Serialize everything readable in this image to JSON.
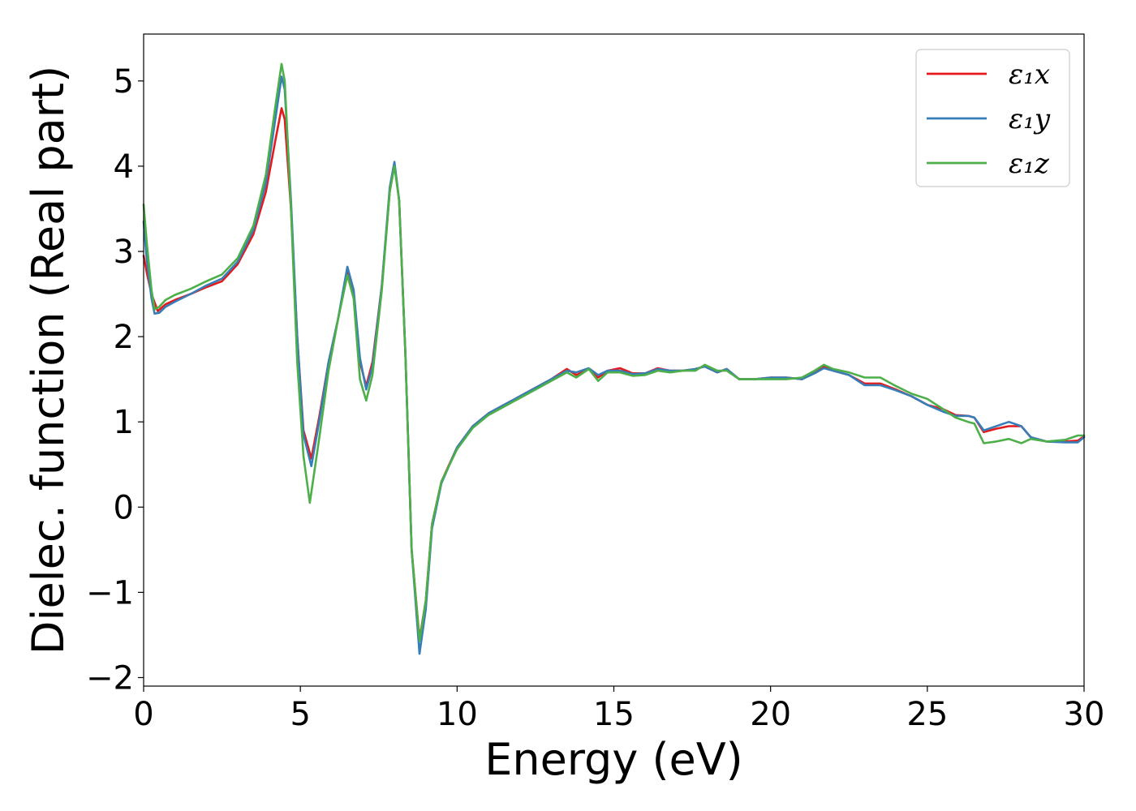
{
  "chart_data": {
    "type": "line",
    "xlabel": "Energy (eV)",
    "ylabel": "Dielec. function (Real part)",
    "xlim": [
      0,
      30
    ],
    "ylim": [
      -2.1,
      5.55
    ],
    "xticks": [
      0,
      5,
      10,
      15,
      20,
      25,
      30
    ],
    "yticks": [
      -2,
      -1,
      0,
      1,
      2,
      3,
      4,
      5
    ],
    "xtick_labels": [
      "0",
      "5",
      "10",
      "15",
      "20",
      "25",
      "30"
    ],
    "ytick_labels": [
      "−2",
      "−1",
      "0",
      "1",
      "2",
      "3",
      "4",
      "5"
    ],
    "grid": false,
    "legend_position": "top-right",
    "series": [
      {
        "name": "ε₁x",
        "color": "#e41a1c",
        "points": [
          [
            0,
            2.95
          ],
          [
            0.1,
            2.75
          ],
          [
            0.25,
            2.5
          ],
          [
            0.45,
            2.3
          ],
          [
            0.7,
            2.38
          ],
          [
            1,
            2.43
          ],
          [
            1.5,
            2.5
          ],
          [
            2,
            2.58
          ],
          [
            2.5,
            2.65
          ],
          [
            3,
            2.85
          ],
          [
            3.5,
            3.2
          ],
          [
            3.9,
            3.7
          ],
          [
            4.2,
            4.3
          ],
          [
            4.4,
            4.68
          ],
          [
            4.5,
            4.55
          ],
          [
            4.7,
            3.5
          ],
          [
            4.9,
            2.0
          ],
          [
            5.1,
            0.9
          ],
          [
            5.35,
            0.57
          ],
          [
            5.6,
            1.05
          ],
          [
            5.9,
            1.7
          ],
          [
            6.2,
            2.2
          ],
          [
            6.5,
            2.78
          ],
          [
            6.7,
            2.5
          ],
          [
            6.9,
            1.7
          ],
          [
            7.1,
            1.42
          ],
          [
            7.3,
            1.7
          ],
          [
            7.6,
            2.6
          ],
          [
            7.85,
            3.7
          ],
          [
            8.0,
            4.02
          ],
          [
            8.15,
            3.6
          ],
          [
            8.35,
            1.8
          ],
          [
            8.55,
            -0.5
          ],
          [
            8.8,
            -1.55
          ],
          [
            9.0,
            -1.1
          ],
          [
            9.2,
            -0.2
          ],
          [
            9.5,
            0.3
          ],
          [
            10,
            0.7
          ],
          [
            10.5,
            0.95
          ],
          [
            11,
            1.1
          ],
          [
            11.5,
            1.2
          ],
          [
            12,
            1.3
          ],
          [
            12.5,
            1.4
          ],
          [
            13,
            1.5
          ],
          [
            13.5,
            1.62
          ],
          [
            13.8,
            1.55
          ],
          [
            14.2,
            1.62
          ],
          [
            14.5,
            1.52
          ],
          [
            14.8,
            1.6
          ],
          [
            15.2,
            1.63
          ],
          [
            15.6,
            1.57
          ],
          [
            16,
            1.57
          ],
          [
            16.4,
            1.63
          ],
          [
            16.8,
            1.6
          ],
          [
            17.2,
            1.6
          ],
          [
            17.6,
            1.62
          ],
          [
            17.9,
            1.65
          ],
          [
            18.3,
            1.58
          ],
          [
            18.6,
            1.62
          ],
          [
            19,
            1.5
          ],
          [
            19.5,
            1.5
          ],
          [
            20,
            1.52
          ],
          [
            20.5,
            1.52
          ],
          [
            21,
            1.5
          ],
          [
            21.4,
            1.58
          ],
          [
            21.7,
            1.65
          ],
          [
            22,
            1.6
          ],
          [
            22.5,
            1.55
          ],
          [
            23,
            1.45
          ],
          [
            23.5,
            1.45
          ],
          [
            24,
            1.38
          ],
          [
            24.5,
            1.3
          ],
          [
            25,
            1.2
          ],
          [
            25.5,
            1.15
          ],
          [
            25.9,
            1.08
          ],
          [
            26.3,
            1.07
          ],
          [
            26.5,
            1.05
          ],
          [
            26.8,
            0.88
          ],
          [
            27.2,
            0.92
          ],
          [
            27.6,
            0.95
          ],
          [
            28,
            0.95
          ],
          [
            28.3,
            0.82
          ],
          [
            28.8,
            0.77
          ],
          [
            29.4,
            0.77
          ],
          [
            29.8,
            0.78
          ],
          [
            30,
            0.83
          ]
        ]
      },
      {
        "name": "ε₁y",
        "color": "#377eb8",
        "points": [
          [
            0,
            3.35
          ],
          [
            0.1,
            2.9
          ],
          [
            0.25,
            2.45
          ],
          [
            0.35,
            2.27
          ],
          [
            0.5,
            2.28
          ],
          [
            0.7,
            2.35
          ],
          [
            1,
            2.41
          ],
          [
            1.5,
            2.5
          ],
          [
            2,
            2.6
          ],
          [
            2.5,
            2.68
          ],
          [
            3,
            2.88
          ],
          [
            3.5,
            3.25
          ],
          [
            3.9,
            3.8
          ],
          [
            4.2,
            4.55
          ],
          [
            4.4,
            5.05
          ],
          [
            4.5,
            4.9
          ],
          [
            4.7,
            3.6
          ],
          [
            4.9,
            2.0
          ],
          [
            5.1,
            0.85
          ],
          [
            5.35,
            0.48
          ],
          [
            5.6,
            1.0
          ],
          [
            5.9,
            1.7
          ],
          [
            6.2,
            2.2
          ],
          [
            6.5,
            2.82
          ],
          [
            6.7,
            2.55
          ],
          [
            6.9,
            1.75
          ],
          [
            7.1,
            1.38
          ],
          [
            7.3,
            1.65
          ],
          [
            7.6,
            2.6
          ],
          [
            7.85,
            3.75
          ],
          [
            8.0,
            4.05
          ],
          [
            8.15,
            3.6
          ],
          [
            8.35,
            1.8
          ],
          [
            8.55,
            -0.5
          ],
          [
            8.8,
            -1.72
          ],
          [
            9.0,
            -1.2
          ],
          [
            9.2,
            -0.25
          ],
          [
            9.5,
            0.28
          ],
          [
            10,
            0.7
          ],
          [
            10.5,
            0.95
          ],
          [
            11,
            1.1
          ],
          [
            11.5,
            1.2
          ],
          [
            12,
            1.3
          ],
          [
            12.5,
            1.4
          ],
          [
            13,
            1.5
          ],
          [
            13.5,
            1.6
          ],
          [
            13.8,
            1.58
          ],
          [
            14.2,
            1.63
          ],
          [
            14.5,
            1.55
          ],
          [
            14.8,
            1.6
          ],
          [
            15.2,
            1.6
          ],
          [
            15.6,
            1.56
          ],
          [
            16,
            1.57
          ],
          [
            16.4,
            1.62
          ],
          [
            16.8,
            1.6
          ],
          [
            17.2,
            1.6
          ],
          [
            17.6,
            1.62
          ],
          [
            17.9,
            1.65
          ],
          [
            18.3,
            1.58
          ],
          [
            18.6,
            1.62
          ],
          [
            19,
            1.5
          ],
          [
            19.5,
            1.5
          ],
          [
            20,
            1.52
          ],
          [
            20.5,
            1.52
          ],
          [
            21,
            1.5
          ],
          [
            21.4,
            1.57
          ],
          [
            21.7,
            1.63
          ],
          [
            22,
            1.6
          ],
          [
            22.5,
            1.55
          ],
          [
            23,
            1.43
          ],
          [
            23.5,
            1.43
          ],
          [
            24,
            1.37
          ],
          [
            24.5,
            1.3
          ],
          [
            25,
            1.2
          ],
          [
            25.5,
            1.12
          ],
          [
            25.9,
            1.07
          ],
          [
            26.3,
            1.07
          ],
          [
            26.5,
            1.05
          ],
          [
            26.8,
            0.9
          ],
          [
            27.2,
            0.95
          ],
          [
            27.6,
            1.0
          ],
          [
            28,
            0.95
          ],
          [
            28.3,
            0.82
          ],
          [
            28.8,
            0.77
          ],
          [
            29.4,
            0.76
          ],
          [
            29.8,
            0.76
          ],
          [
            30,
            0.82
          ]
        ]
      },
      {
        "name": "ε₁z",
        "color": "#4daf4a",
        "points": [
          [
            0,
            3.55
          ],
          [
            0.1,
            3.1
          ],
          [
            0.25,
            2.55
          ],
          [
            0.35,
            2.32
          ],
          [
            0.5,
            2.35
          ],
          [
            0.7,
            2.43
          ],
          [
            1,
            2.49
          ],
          [
            1.5,
            2.56
          ],
          [
            2,
            2.65
          ],
          [
            2.5,
            2.73
          ],
          [
            3,
            2.92
          ],
          [
            3.5,
            3.3
          ],
          [
            3.9,
            3.9
          ],
          [
            4.2,
            4.7
          ],
          [
            4.4,
            5.2
          ],
          [
            4.5,
            5.0
          ],
          [
            4.7,
            3.5
          ],
          [
            4.9,
            1.7
          ],
          [
            5.1,
            0.6
          ],
          [
            5.3,
            0.05
          ],
          [
            5.6,
            0.8
          ],
          [
            5.9,
            1.6
          ],
          [
            6.2,
            2.2
          ],
          [
            6.5,
            2.72
          ],
          [
            6.7,
            2.45
          ],
          [
            6.9,
            1.5
          ],
          [
            7.1,
            1.25
          ],
          [
            7.3,
            1.55
          ],
          [
            7.6,
            2.55
          ],
          [
            7.85,
            3.7
          ],
          [
            8.0,
            4.0
          ],
          [
            8.15,
            3.6
          ],
          [
            8.35,
            1.8
          ],
          [
            8.55,
            -0.5
          ],
          [
            8.8,
            -1.57
          ],
          [
            9.0,
            -1.1
          ],
          [
            9.2,
            -0.2
          ],
          [
            9.5,
            0.3
          ],
          [
            10,
            0.68
          ],
          [
            10.5,
            0.93
          ],
          [
            11,
            1.08
          ],
          [
            11.5,
            1.18
          ],
          [
            12,
            1.28
          ],
          [
            12.5,
            1.38
          ],
          [
            13,
            1.48
          ],
          [
            13.5,
            1.58
          ],
          [
            13.8,
            1.52
          ],
          [
            14.2,
            1.62
          ],
          [
            14.5,
            1.48
          ],
          [
            14.8,
            1.58
          ],
          [
            15.2,
            1.58
          ],
          [
            15.6,
            1.54
          ],
          [
            16,
            1.55
          ],
          [
            16.4,
            1.6
          ],
          [
            16.8,
            1.58
          ],
          [
            17.2,
            1.6
          ],
          [
            17.6,
            1.6
          ],
          [
            17.9,
            1.67
          ],
          [
            18.3,
            1.6
          ],
          [
            18.6,
            1.6
          ],
          [
            19,
            1.5
          ],
          [
            19.5,
            1.5
          ],
          [
            20,
            1.5
          ],
          [
            20.5,
            1.5
          ],
          [
            21,
            1.52
          ],
          [
            21.4,
            1.6
          ],
          [
            21.7,
            1.67
          ],
          [
            22,
            1.62
          ],
          [
            22.5,
            1.58
          ],
          [
            23,
            1.52
          ],
          [
            23.5,
            1.52
          ],
          [
            24,
            1.42
          ],
          [
            24.5,
            1.33
          ],
          [
            25,
            1.27
          ],
          [
            25.5,
            1.15
          ],
          [
            25.9,
            1.05
          ],
          [
            26.3,
            1.0
          ],
          [
            26.5,
            0.98
          ],
          [
            26.8,
            0.75
          ],
          [
            27.2,
            0.77
          ],
          [
            27.6,
            0.8
          ],
          [
            28,
            0.75
          ],
          [
            28.3,
            0.8
          ],
          [
            28.8,
            0.77
          ],
          [
            29.4,
            0.79
          ],
          [
            29.8,
            0.84
          ],
          [
            30,
            0.84
          ]
        ]
      }
    ]
  }
}
